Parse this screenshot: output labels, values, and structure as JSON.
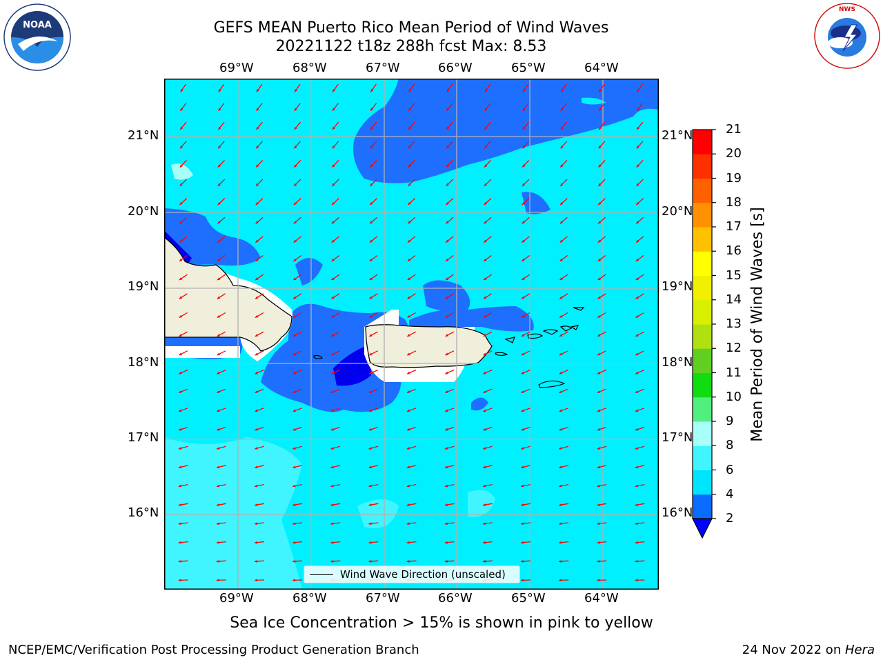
{
  "header": {
    "title_line1": "GEFS MEAN Puerto Rico Mean Period of Wind Waves",
    "title_line2": "20221122 t18z 288h fcst   Max: 8.53"
  },
  "logos": {
    "left": "noaa-logo",
    "right": "nws-logo"
  },
  "axes": {
    "lon_labels": [
      "69°W",
      "68°W",
      "67°W",
      "66°W",
      "65°W",
      "64°W"
    ],
    "lat_labels": [
      "21°N",
      "20°N",
      "19°N",
      "18°N",
      "17°N",
      "16°N"
    ]
  },
  "colorbar": {
    "label": "Mean Period of Wind Waves [s]",
    "ticks": [
      "2",
      "4",
      "6",
      "8",
      "9",
      "10",
      "11",
      "12",
      "13",
      "14",
      "15",
      "16",
      "17",
      "18",
      "19",
      "20",
      "21"
    ],
    "colors": [
      "#0a6cff",
      "#00e5ff",
      "#40f5ff",
      "#a8fff8",
      "#50f080",
      "#10dc10",
      "#60d020",
      "#b0e010",
      "#d8f000",
      "#f0f000",
      "#ffff00",
      "#ffc000",
      "#ff9000",
      "#ff6000",
      "#ff3000",
      "#ff0000"
    ],
    "under_color": "#0000ff"
  },
  "legend": {
    "label": "Wind Wave Direction (unscaled)"
  },
  "caption": "Sea Ice Concentration > 15% is shown in pink to yellow",
  "footer": {
    "left": "NCEP/EMC/Verification Post Processing Product Generation Branch",
    "right_prefix": "24 Nov 2022 on ",
    "right_machine": "Hera"
  }
}
